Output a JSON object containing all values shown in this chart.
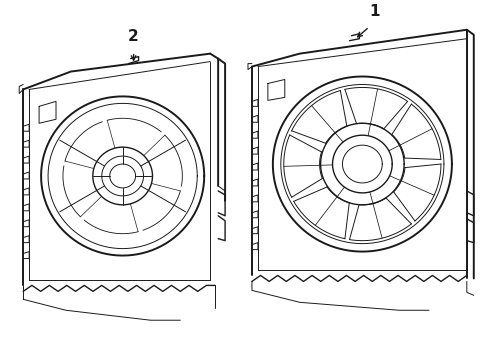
{
  "background_color": "#ffffff",
  "line_color": "#1a1a1a",
  "label1": "1",
  "label2": "2",
  "fig_width": 4.9,
  "fig_height": 3.6,
  "dpi": 100
}
